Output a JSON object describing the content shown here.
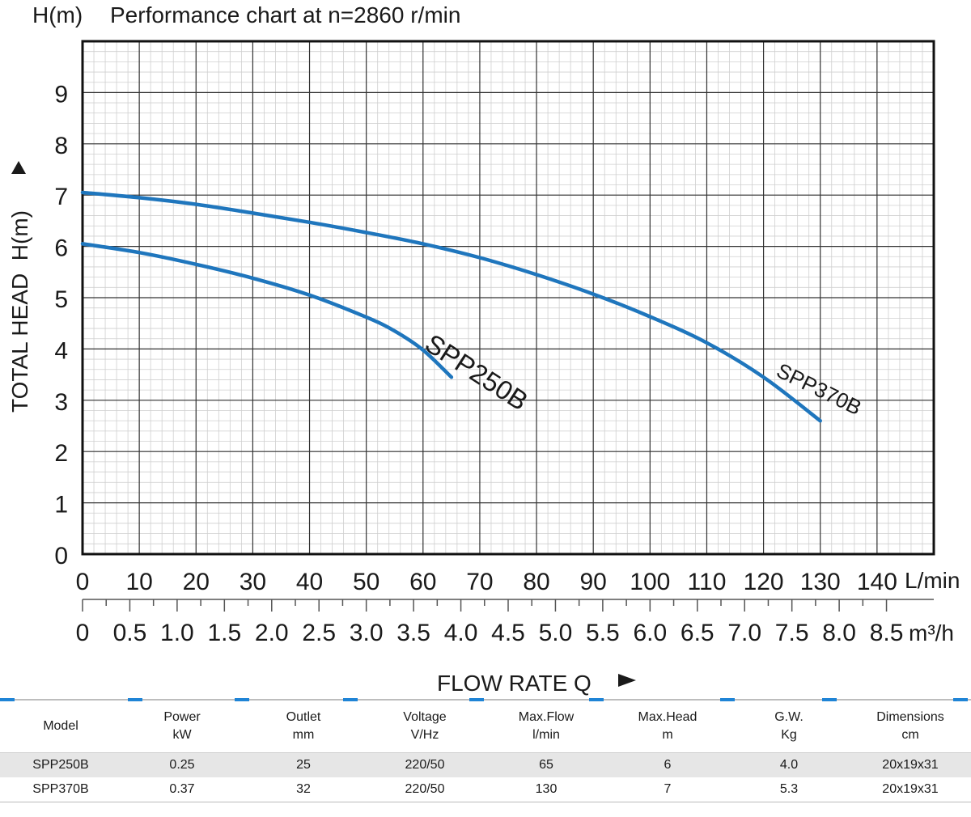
{
  "chart_data": {
    "type": "line",
    "title": "Performance chart at n=2860 r/min",
    "y_unit_label": "H(m)",
    "ylabel": "TOTAL HEAD  H(m)",
    "xlabel": "FLOW RATE Q",
    "x_unit": "L/min",
    "x2_unit": "m³/h",
    "xlim": [
      0,
      150
    ],
    "ylim": [
      0,
      10
    ],
    "grid": true,
    "x_ticks": [
      "0",
      "10",
      "20",
      "30",
      "40",
      "50",
      "60",
      "70",
      "80",
      "90",
      "100",
      "110",
      "120",
      "130",
      "140"
    ],
    "x2_ticks": [
      "0",
      "0.5",
      "1.0",
      "1.5",
      "2.0",
      "2.5",
      "3.0",
      "3.5",
      "4.0",
      "4.5",
      "5.0",
      "5.5",
      "6.0",
      "6.5",
      "7.0",
      "7.5",
      "8.0",
      "8.5"
    ],
    "y_ticks": [
      "0",
      "1",
      "2",
      "3",
      "4",
      "5",
      "6",
      "7",
      "8",
      "9"
    ],
    "series": [
      {
        "name": "SPP250B",
        "x": [
          0,
          10,
          20,
          30,
          40,
          50,
          55,
          60,
          65
        ],
        "y": [
          6.05,
          5.88,
          5.65,
          5.38,
          5.05,
          4.62,
          4.35,
          3.98,
          3.45
        ]
      },
      {
        "name": "SPP370B",
        "x": [
          0,
          10,
          20,
          30,
          40,
          50,
          60,
          70,
          80,
          90,
          100,
          110,
          120,
          130
        ],
        "y": [
          7.05,
          6.95,
          6.82,
          6.65,
          6.47,
          6.27,
          6.05,
          5.78,
          5.45,
          5.07,
          4.63,
          4.12,
          3.45,
          2.6
        ]
      }
    ]
  },
  "spec_table": {
    "headers": [
      {
        "name": "Model",
        "unit": ""
      },
      {
        "name": "Power",
        "unit": "kW"
      },
      {
        "name": "Outlet",
        "unit": "mm"
      },
      {
        "name": "Voltage",
        "unit": "V/Hz"
      },
      {
        "name": "Max.Flow",
        "unit": "l/min"
      },
      {
        "name": "Max.Head",
        "unit": "m"
      },
      {
        "name": "G.W.",
        "unit": "Kg"
      },
      {
        "name": "Dimensions",
        "unit": "cm"
      }
    ],
    "rows": [
      [
        "SPP250B",
        "0.25",
        "25",
        "220/50",
        "65",
        "6",
        "4.0",
        "20x19x31"
      ],
      [
        "SPP370B",
        "0.37",
        "32",
        "220/50",
        "130",
        "7",
        "5.3",
        "20x19x31"
      ]
    ]
  },
  "colors": {
    "curve": "#1f76bd",
    "grid_major": "#333333",
    "grid_minor": "#cfcfcf",
    "frame": "#111111",
    "accent_bar": "#1f84d6"
  }
}
